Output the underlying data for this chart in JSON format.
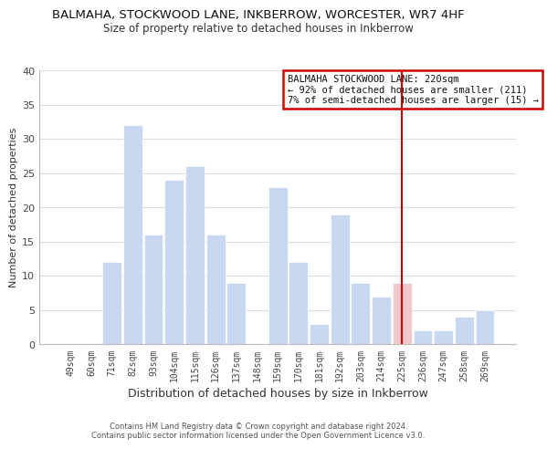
{
  "title": "BALMAHA, STOCKWOOD LANE, INKBERROW, WORCESTER, WR7 4HF",
  "subtitle": "Size of property relative to detached houses in Inkberrow",
  "xlabel": "Distribution of detached houses by size in Inkberrow",
  "ylabel": "Number of detached properties",
  "footer_line1": "Contains HM Land Registry data © Crown copyright and database right 2024.",
  "footer_line2": "Contains public sector information licensed under the Open Government Licence v3.0.",
  "bar_labels": [
    "49sqm",
    "60sqm",
    "71sqm",
    "82sqm",
    "93sqm",
    "104sqm",
    "115sqm",
    "126sqm",
    "137sqm",
    "148sqm",
    "159sqm",
    "170sqm",
    "181sqm",
    "192sqm",
    "203sqm",
    "214sqm",
    "225sqm",
    "236sqm",
    "247sqm",
    "258sqm",
    "269sqm"
  ],
  "bar_values": [
    0,
    0,
    12,
    32,
    16,
    24,
    26,
    16,
    9,
    0,
    23,
    12,
    3,
    19,
    9,
    7,
    9,
    2,
    2,
    4,
    5
  ],
  "bar_color_normal": "#c8d8f0",
  "bar_color_highlight": "#f0c8c8",
  "highlight_index": 16,
  "vertical_line_x": 16,
  "ylim": [
    0,
    40
  ],
  "yticks": [
    0,
    5,
    10,
    15,
    20,
    25,
    30,
    35,
    40
  ],
  "annotation_title": "BALMAHA STOCKWOOD LANE: 220sqm",
  "annotation_line1": "← 92% of detached houses are smaller (211)",
  "annotation_line2": "7% of semi-detached houses are larger (15) →",
  "annotation_box_color": "#ffffff",
  "annotation_box_edge": "#cc0000",
  "vline_color": "#cc0000"
}
